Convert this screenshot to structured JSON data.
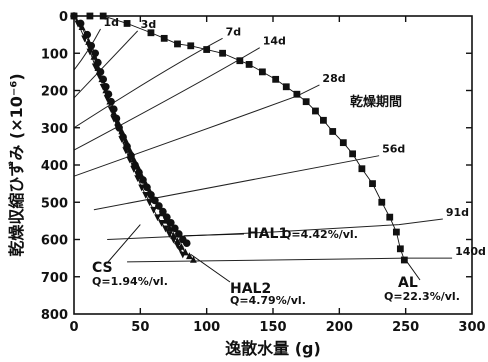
{
  "chart_data": {
    "type": "scatter",
    "xlabel": "逸散水量 (g)",
    "ylabel": "乾燥収縮ひずみ (×10⁻⁶)",
    "xlim": [
      0,
      300
    ],
    "ylim": [
      0,
      800
    ],
    "y_inverted": true,
    "x_ticks": [
      "0",
      "50",
      "100",
      "150",
      "200",
      "250",
      "300"
    ],
    "y_ticks": [
      "0",
      "100",
      "200",
      "300",
      "400",
      "500",
      "600",
      "700",
      "800"
    ],
    "grid": false,
    "legend": "none",
    "isochrone_title": "乾燥期間",
    "series": [
      {
        "name": "CS",
        "marker": "triangle-down",
        "x": [
          0,
          3,
          8,
          12,
          16,
          19,
          22,
          25,
          28,
          30,
          33,
          36,
          39,
          42,
          45,
          48,
          51,
          54,
          57,
          60,
          63,
          66,
          69,
          72,
          75,
          78,
          80,
          82
        ],
        "y": [
          0,
          20,
          60,
          95,
          135,
          160,
          190,
          220,
          250,
          275,
          300,
          330,
          360,
          385,
          410,
          435,
          460,
          480,
          500,
          520,
          540,
          555,
          570,
          585,
          600,
          615,
          625,
          640
        ]
      },
      {
        "name": "HAL1",
        "marker": "circle",
        "x": [
          0,
          5,
          10,
          13,
          16,
          18,
          20,
          22,
          24,
          26,
          28,
          30,
          32,
          34,
          37,
          40,
          43,
          46,
          49,
          52,
          55,
          58,
          61,
          64,
          67,
          70,
          73,
          76,
          79,
          82,
          85
        ],
        "y": [
          0,
          20,
          50,
          80,
          100,
          125,
          150,
          170,
          190,
          210,
          230,
          250,
          275,
          300,
          325,
          350,
          375,
          400,
          420,
          440,
          460,
          480,
          495,
          510,
          525,
          540,
          555,
          570,
          585,
          600,
          610
        ]
      },
      {
        "name": "HAL2",
        "marker": "triangle-up",
        "x": [
          0,
          6,
          11,
          15,
          18,
          21,
          24,
          27,
          30,
          33,
          36,
          39,
          42,
          45,
          48,
          51,
          54,
          57,
          60,
          63,
          66,
          69,
          72,
          75,
          78,
          81,
          84,
          87,
          90
        ],
        "y": [
          0,
          30,
          70,
          110,
          140,
          170,
          200,
          230,
          260,
          285,
          310,
          335,
          360,
          385,
          405,
          430,
          450,
          470,
          490,
          510,
          530,
          550,
          570,
          590,
          605,
          620,
          635,
          645,
          655
        ]
      },
      {
        "name": "AL",
        "marker": "square",
        "x": [
          0,
          12,
          22,
          40,
          58,
          68,
          78,
          88,
          100,
          112,
          125,
          132,
          142,
          152,
          160,
          168,
          175,
          182,
          188,
          195,
          203,
          210,
          217,
          225,
          232,
          238,
          243,
          246,
          249
        ],
        "y": [
          0,
          0,
          0,
          20,
          45,
          60,
          75,
          80,
          90,
          100,
          120,
          130,
          150,
          170,
          190,
          210,
          230,
          255,
          280,
          310,
          340,
          370,
          410,
          450,
          500,
          540,
          580,
          625,
          655
        ]
      }
    ],
    "isochrones": [
      {
        "label": "1d",
        "x": [
          0,
          11,
          20
        ],
        "y": [
          145,
          95,
          35
        ]
      },
      {
        "label": "3d",
        "x": [
          0,
          28,
          48
        ],
        "y": [
          220,
          115,
          40
        ]
      },
      {
        "label": "7d",
        "x": [
          0,
          70,
          112
        ],
        "y": [
          300,
          140,
          60
        ]
      },
      {
        "label": "14d",
        "x": [
          0,
          95,
          140
        ],
        "y": [
          360,
          180,
          85
        ]
      },
      {
        "label": "28d",
        "x": [
          0,
          110,
          168,
          185
        ],
        "y": [
          430,
          290,
          215,
          185
        ]
      },
      {
        "label": "56d",
        "x": [
          15,
          150,
          230
        ],
        "y": [
          520,
          430,
          375
        ]
      },
      {
        "label": "91d",
        "x": [
          25,
          150,
          245,
          278
        ],
        "y": [
          600,
          580,
          560,
          545
        ]
      },
      {
        "label": "140d",
        "x": [
          40,
          150,
          250,
          285
        ],
        "y": [
          660,
          655,
          650,
          650
        ]
      }
    ],
    "annotations": [
      {
        "id": "hal1",
        "label": "HAL1",
        "q": "Q=4.42%/vl."
      },
      {
        "id": "hal2",
        "label": "HAL2",
        "q": "Q=4.79%/vl."
      },
      {
        "id": "cs",
        "label": "CS",
        "q": "Q=1.94%/vl."
      },
      {
        "id": "al",
        "label": "AL",
        "q": "Q=22.3%/vl."
      }
    ]
  }
}
